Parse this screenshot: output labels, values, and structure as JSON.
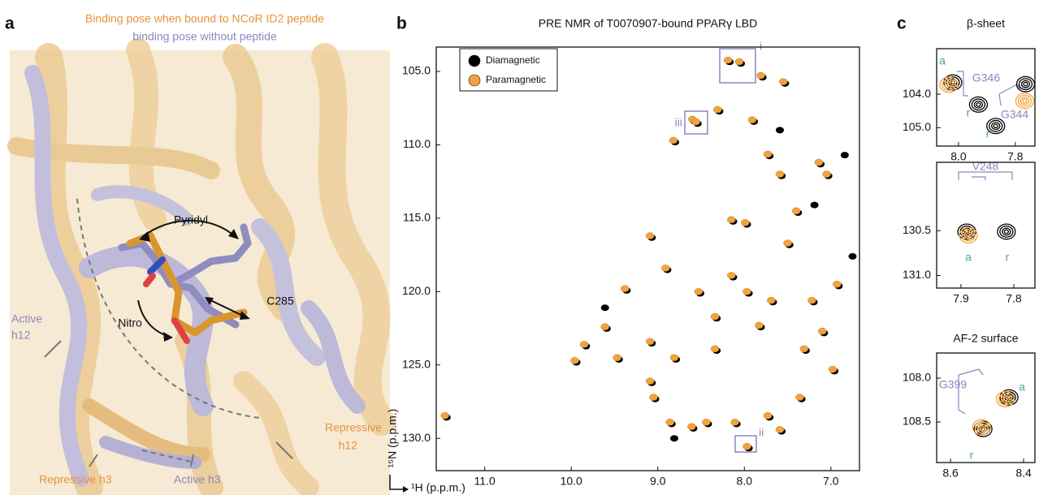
{
  "panel_a": {
    "letter": "a",
    "title": "Binding pose when bound to NCoR ID2 peptide",
    "subtitle": "binding pose without peptide",
    "labels": {
      "pyridyl": "Pyridyl",
      "c285": "C285",
      "nitro": "Nitro",
      "active_h12": [
        "Active",
        "h12"
      ],
      "repressive_h12": [
        "Repressive",
        "h12"
      ],
      "repressive_h3": "Repressive h3",
      "active_h3": "Active h3"
    }
  },
  "chart_data": [
    {
      "type": "scatter",
      "panel": "b",
      "title": "PRE NMR of T0070907-bound PPARγ LBD",
      "xlabel": "¹H (p.p.m.)",
      "ylabel": "¹⁵N (p.p.m.)",
      "x_inverted": true,
      "y_inverted": true,
      "xlim": [
        6.67,
        11.56
      ],
      "ylim": [
        103.34,
        132.2
      ],
      "xticks": [
        {
          "value": 11,
          "label": "11.0"
        },
        {
          "value": 10,
          "label": "10.0"
        },
        {
          "value": 9,
          "label": "9.0"
        },
        {
          "value": 8,
          "label": "8.0"
        },
        {
          "value": 7,
          "label": "7.0"
        }
      ],
      "yticks": [
        {
          "value": 105,
          "label": "105.0"
        },
        {
          "value": 110,
          "label": "110.0"
        },
        {
          "value": 115,
          "label": "115.0"
        },
        {
          "value": 120,
          "label": "120.0"
        },
        {
          "value": 125,
          "label": "125.0"
        },
        {
          "value": 130,
          "label": "130.0"
        }
      ],
      "legend": "upper left",
      "annotations": [
        "i",
        "ii",
        "iii"
      ],
      "series": [
        {
          "name": "Diamagnetic",
          "color": "#000000",
          "x": [
            11.44,
            8.17,
            8.04,
            7.79,
            7.53,
            8.58,
            8.54,
            8.29,
            7.89,
            8.8,
            7.71,
            7.12,
            7.03,
            7.57,
            7.38,
            8.13,
            9.07,
            8.89,
            9.36,
            8.51,
            8.13,
            7.95,
            7.67,
            8.32,
            7.81,
            7.2,
            6.91,
            9.07,
            8.79,
            9.45,
            8.32,
            7.29,
            6.96,
            9.07,
            8.84,
            8.59,
            8.42,
            8.09,
            7.71,
            7.57,
            7.95,
            9.94,
            9.83,
            9.59,
            9.03,
            7.34,
            7.08,
            7.97,
            7.48,
            6.84,
            6.75,
            9.61,
            8.81,
            7.59,
            7.19
          ],
          "y": [
            128.57,
            104.35,
            104.46,
            105.4,
            105.82,
            108.38,
            108.55,
            107.72,
            108.42,
            109.82,
            110.76,
            111.32,
            112.12,
            112.12,
            114.62,
            115.22,
            116.32,
            118.52,
            119.92,
            120.12,
            119.02,
            120.12,
            120.72,
            121.82,
            122.42,
            120.72,
            119.62,
            123.52,
            124.62,
            124.62,
            124.02,
            124.02,
            125.42,
            126.22,
            129.02,
            129.32,
            129.02,
            129.02,
            128.57,
            129.52,
            130.67,
            124.82,
            123.72,
            122.52,
            127.32,
            127.32,
            122.82,
            115.42,
            116.82,
            110.7,
            117.6,
            121.1,
            130.0,
            109.0,
            114.1
          ]
        },
        {
          "name": "Paramagnetic",
          "color": "#f2a33c",
          "x": [
            11.46,
            8.19,
            8.06,
            7.81,
            7.55,
            8.6,
            8.56,
            8.31,
            7.91,
            8.82,
            7.73,
            7.14,
            7.05,
            7.59,
            7.4,
            8.15,
            9.09,
            8.91,
            9.38,
            8.53,
            8.15,
            7.97,
            7.69,
            8.34,
            7.83,
            7.22,
            6.93,
            9.09,
            8.81,
            9.47,
            8.34,
            7.31,
            6.98,
            9.09,
            8.86,
            8.61,
            8.44,
            8.11,
            7.73,
            7.59,
            7.97,
            9.96,
            9.85,
            9.61,
            9.05,
            7.36,
            7.1,
            7.99,
            7.5
          ],
          "y": [
            128.45,
            104.23,
            104.34,
            105.28,
            105.7,
            108.26,
            108.43,
            107.6,
            108.3,
            109.7,
            110.64,
            111.2,
            112.0,
            112.0,
            114.5,
            115.1,
            116.2,
            118.4,
            119.8,
            120.0,
            118.9,
            120.0,
            120.6,
            121.7,
            122.3,
            120.6,
            119.5,
            123.4,
            124.5,
            124.5,
            123.9,
            123.9,
            125.3,
            126.1,
            128.9,
            129.2,
            128.9,
            128.9,
            128.45,
            129.4,
            130.55,
            124.7,
            123.6,
            122.4,
            127.2,
            127.2,
            122.7,
            115.3,
            116.7
          ]
        }
      ]
    },
    {
      "type": "contour",
      "panel": "c",
      "title": "β-sheet",
      "x_inverted": true,
      "y_inverted": true,
      "xlim": [
        7.731,
        8.077
      ],
      "ylim": [
        102.64,
        105.55
      ],
      "xticks": [
        {
          "value": 8,
          "label": "8.0"
        },
        7.8
      ],
      "yticks": [
        {
          "value": 104,
          "label": "104.0"
        },
        {
          "value": 105,
          "label": "105.0"
        }
      ],
      "annotations": [
        "a",
        "G346",
        "r",
        "G344",
        "r"
      ],
      "series": [
        {
          "color": "#000000",
          "x": [
            8.02,
            7.764,
            7.93,
            7.869
          ],
          "y": [
            103.65,
            103.7,
            104.31,
            104.95
          ]
        },
        {
          "color": "#f2a33c",
          "x": [
            8.034,
            7.767
          ],
          "y": [
            103.72,
            104.2
          ]
        }
      ]
    },
    {
      "type": "contour",
      "x_inverted": true,
      "y_inverted": true,
      "xlim": [
        7.76,
        7.946
      ],
      "ylim": [
        129.736,
        131.14
      ],
      "xticks": [
        7.9,
        7.8
      ],
      "yticks": [
        130.5,
        {
          "value": 131,
          "label": "131.0"
        }
      ],
      "annotations": [
        "V248",
        "a",
        "r"
      ],
      "series": [
        {
          "color": "#000000",
          "x": [
            7.889,
            7.814
          ],
          "y": [
            130.51,
            130.51
          ]
        },
        {
          "color": "#f2a33c",
          "x": [
            7.886
          ],
          "y": [
            130.55
          ]
        }
      ]
    },
    {
      "type": "contour",
      "title": "AF-2 surface",
      "x_inverted": true,
      "y_inverted": true,
      "xlim": [
        8.369,
        8.638
      ],
      "ylim": [
        107.713,
        108.963
      ],
      "xticks": [
        8.6,
        8.4
      ],
      "yticks": [
        {
          "value": 108,
          "label": "108.0"
        },
        108.5
      ],
      "annotations": [
        "G399",
        "a",
        "r"
      ],
      "series": [
        {
          "color": "#000000",
          "x": [
            8.44,
            8.511
          ],
          "y": [
            108.22,
            108.58
          ]
        },
        {
          "color": "#f2a33c",
          "x": [
            8.45,
            8.515
          ],
          "y": [
            108.24,
            108.56
          ]
        }
      ]
    }
  ]
}
